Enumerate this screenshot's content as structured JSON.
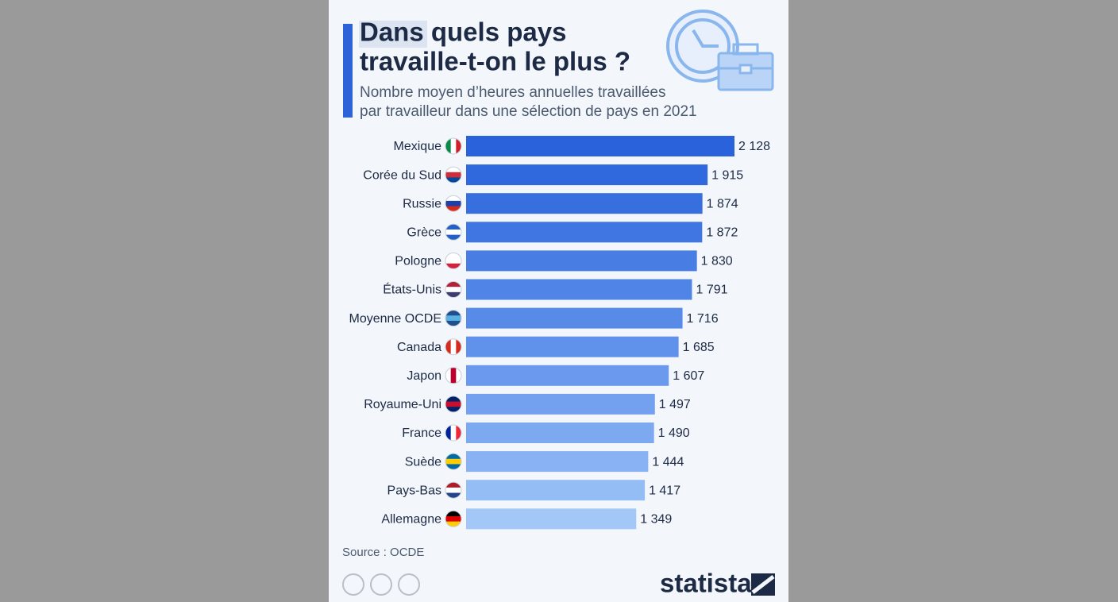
{
  "chart_data": {
    "type": "bar",
    "orientation": "horizontal",
    "title": [
      "Dans quels pays",
      "travaille-t-on le plus ?"
    ],
    "subtitle": [
      "Nombre moyen d’heures annuelles travaillées",
      "par travailleur dans une sélection de pays en 2021"
    ],
    "categories": [
      "Mexique",
      "Corée du Sud",
      "Russie",
      "Grèce",
      "Pologne",
      "États-Unis",
      "Moyenne OCDE",
      "Canada",
      "Japon",
      "Royaume-Uni",
      "France",
      "Suède",
      "Pays-Bas",
      "Allemagne"
    ],
    "values": [
      2128,
      1915,
      1874,
      1872,
      1830,
      1791,
      1716,
      1685,
      1607,
      1497,
      1490,
      1444,
      1417,
      1349
    ],
    "value_labels": [
      "2 128",
      "1 915",
      "1 874",
      "1 872",
      "1 830",
      "1 791",
      "1 716",
      "1 685",
      "1 607",
      "1 497",
      "1 490",
      "1 444",
      "1 417",
      "1 349"
    ],
    "colors": [
      "#2962db",
      "#3068dd",
      "#386fdf",
      "#4076e2",
      "#487de4",
      "#5084e6",
      "#588be8",
      "#6192eb",
      "#6a99ed",
      "#73a1ef",
      "#7da9f1",
      "#88b2f3",
      "#94bcf5",
      "#a3c7f7"
    ],
    "source": "Source : OCDE",
    "brand": "statista"
  }
}
